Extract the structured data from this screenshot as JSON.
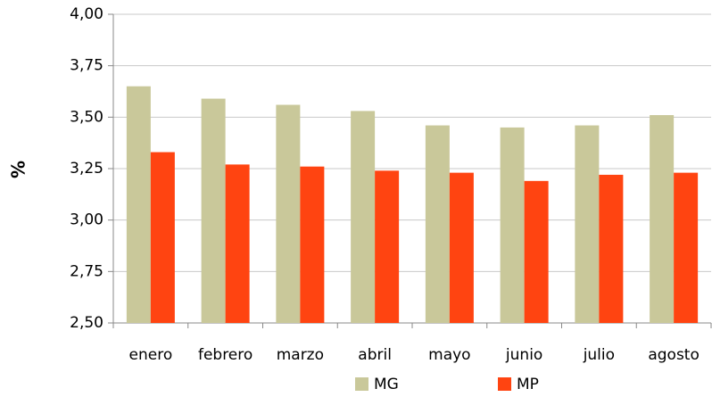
{
  "chart_data": {
    "type": "bar",
    "y_label": "%",
    "categories": [
      "enero",
      "febrero",
      "marzo",
      "abril",
      "mayo",
      "junio",
      "julio",
      "agosto"
    ],
    "series": [
      {
        "name": "MG",
        "color": "#c9c89a",
        "values": [
          3.65,
          3.59,
          3.56,
          3.53,
          3.46,
          3.45,
          3.46,
          3.51
        ]
      },
      {
        "name": "MP",
        "color": "#ff4411",
        "values": [
          3.33,
          3.27,
          3.26,
          3.24,
          3.23,
          3.19,
          3.22,
          3.23
        ]
      }
    ],
    "ylim": [
      2.5,
      4.0
    ],
    "yticks": [
      {
        "value": 2.5,
        "label": "2,50"
      },
      {
        "value": 2.75,
        "label": "2,75"
      },
      {
        "value": 3.0,
        "label": "3,00"
      },
      {
        "value": 3.25,
        "label": "3,25"
      },
      {
        "value": 3.5,
        "label": "3,50"
      },
      {
        "value": 3.75,
        "label": "3,75"
      },
      {
        "value": 4.0,
        "label": "4,00"
      }
    ],
    "grid": true,
    "legend": "bottom"
  }
}
